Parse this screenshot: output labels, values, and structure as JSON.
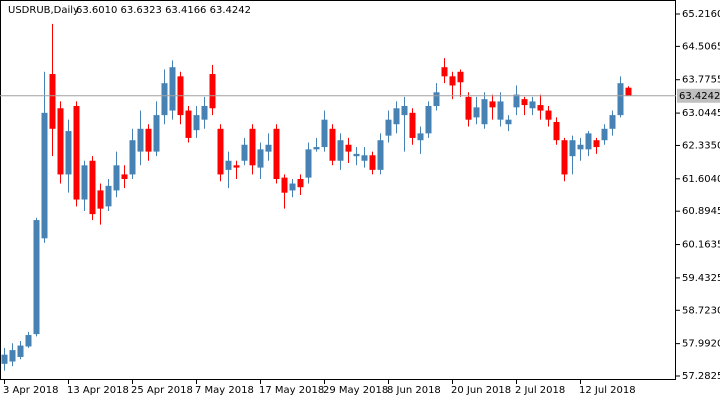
{
  "chart_data": {
    "type": "candlestick",
    "title": "USDRUB,Daily",
    "info": "63.6010 63.6323 63.4166 63.4242",
    "up_color": "#4682b4",
    "down_color": "#ff0000",
    "categories": [
      "3 Apr 2018",
      null,
      null,
      null,
      null,
      null,
      null,
      null,
      "13 Apr 2018",
      null,
      null,
      null,
      null,
      null,
      null,
      null,
      "25 Apr 2018",
      null,
      null,
      null,
      null,
      null,
      null,
      null,
      "7 May 2018",
      null,
      null,
      null,
      null,
      null,
      null,
      null,
      "17 May 2018",
      null,
      null,
      null,
      null,
      null,
      null,
      null,
      "29 May 2018",
      null,
      null,
      null,
      null,
      null,
      null,
      null,
      "8 Jun 2018",
      null,
      null,
      null,
      null,
      null,
      null,
      null,
      "20 Jun 2018",
      null,
      null,
      null,
      null,
      null,
      null,
      null,
      "2 Jul 2018",
      null,
      null,
      null,
      null,
      null,
      null,
      null,
      "12 Jul 2018",
      null,
      null,
      null,
      null,
      null,
      null
    ],
    "open": [
      57.55,
      57.6,
      57.7,
      57.93,
      58.2,
      60.3,
      63.9,
      63.15,
      61.7,
      63.2,
      61.15,
      62.0,
      61.35,
      61.0,
      61.35,
      61.7,
      61.7,
      62.2,
      62.7,
      62.2,
      63.0,
      63.1,
      63.85,
      63.1,
      62.67,
      62.9,
      63.9,
      62.7,
      61.8,
      61.9,
      62.0,
      62.7,
      61.85,
      62.2,
      62.7,
      61.63,
      61.35,
      61.6,
      61.63,
      62.25,
      62.3,
      62.7,
      62.0,
      62.35,
      62.1,
      62.0,
      62.12,
      61.8,
      62.55,
      62.8,
      63.0,
      63.05,
      62.45,
      62.6,
      63.2,
      64.05,
      63.85,
      63.95,
      63.4,
      62.95,
      62.8,
      63.3,
      62.9,
      62.8,
      63.17,
      63.35,
      63.15,
      63.22,
      63.1,
      62.85,
      62.45,
      62.1,
      62.25,
      62.25,
      62.45,
      62.45,
      62.7,
      63.0,
      63.601
    ],
    "high": [
      57.9,
      58.0,
      58.05,
      58.25,
      60.75,
      63.95,
      65.0,
      63.3,
      62.9,
      63.3,
      62.0,
      62.1,
      61.5,
      61.6,
      62.2,
      61.9,
      62.7,
      63.1,
      62.8,
      63.3,
      64.0,
      64.2,
      63.95,
      63.2,
      63.2,
      63.4,
      64.1,
      62.8,
      62.2,
      62.0,
      62.5,
      62.8,
      62.4,
      62.6,
      62.8,
      61.7,
      61.6,
      61.7,
      62.4,
      62.5,
      63.1,
      62.8,
      62.6,
      62.5,
      62.3,
      62.3,
      62.2,
      62.6,
      63.1,
      63.3,
      63.4,
      63.15,
      62.75,
      63.3,
      63.7,
      64.25,
      63.95,
      64.0,
      63.5,
      63.4,
      63.5,
      63.45,
      63.5,
      63.0,
      63.65,
      63.4,
      63.4,
      63.45,
      63.2,
      62.95,
      62.5,
      62.55,
      62.5,
      62.65,
      62.5,
      62.8,
      63.1,
      63.85,
      63.6323
    ],
    "low": [
      57.4,
      57.5,
      57.65,
      57.9,
      58.15,
      60.2,
      62.1,
      61.5,
      61.3,
      61.0,
      60.9,
      60.7,
      60.6,
      60.9,
      61.2,
      61.4,
      61.6,
      61.9,
      62.0,
      62.1,
      62.8,
      62.9,
      62.8,
      62.4,
      62.5,
      62.7,
      63.0,
      61.55,
      61.4,
      61.6,
      61.9,
      61.7,
      61.6,
      62.0,
      61.5,
      60.95,
      61.2,
      61.25,
      61.5,
      62.2,
      62.2,
      61.9,
      61.8,
      61.95,
      61.9,
      61.85,
      61.7,
      61.7,
      62.4,
      62.6,
      62.2,
      62.35,
      62.15,
      62.5,
      63.1,
      63.7,
      63.35,
      63.4,
      62.75,
      62.8,
      62.7,
      62.9,
      62.75,
      62.65,
      63.0,
      63.0,
      63.0,
      62.9,
      62.75,
      62.35,
      61.55,
      61.7,
      62.0,
      62.1,
      62.15,
      62.35,
      62.55,
      62.95,
      63.4166
    ],
    "close": [
      57.75,
      57.85,
      57.95,
      58.18,
      60.7,
      63.05,
      62.7,
      61.7,
      62.65,
      61.15,
      61.9,
      60.83,
      60.95,
      61.45,
      61.9,
      61.6,
      62.45,
      62.7,
      62.2,
      63.0,
      63.7,
      64.05,
      63.0,
      62.5,
      63.0,
      63.2,
      63.15,
      61.7,
      62.0,
      61.85,
      62.35,
      61.9,
      62.25,
      62.35,
      61.6,
      61.3,
      61.5,
      61.42,
      62.25,
      62.3,
      62.9,
      62.0,
      62.45,
      62.2,
      62.15,
      62.12,
      61.8,
      62.45,
      62.9,
      63.15,
      63.2,
      62.5,
      62.6,
      63.2,
      63.5,
      63.85,
      63.65,
      63.72,
      62.9,
      63.17,
      63.35,
      63.17,
      63.3,
      62.9,
      63.45,
      63.22,
      63.3,
      63.1,
      62.9,
      62.45,
      61.7,
      62.45,
      62.35,
      62.6,
      62.3,
      62.7,
      63.0,
      63.7,
      63.4242
    ],
    "last_price": {
      "value": 63.4242,
      "label": "63.4242"
    },
    "ylim": [
      57.195,
      65.457
    ],
    "yticks": [
      {
        "value": 65.216,
        "label": "65.2160"
      },
      {
        "value": 64.5065,
        "label": "64.5065"
      },
      {
        "value": 63.7755,
        "label": "63.7755"
      },
      {
        "value": 63.0445,
        "label": "63.0445"
      },
      {
        "value": 62.335,
        "label": "62.3350"
      },
      {
        "value": 61.604,
        "label": "61.6040"
      },
      {
        "value": 60.8945,
        "label": "60.8945"
      },
      {
        "value": 60.1635,
        "label": "60.1635"
      },
      {
        "value": 59.4325,
        "label": "59.4325"
      },
      {
        "value": 58.723,
        "label": "58.7230"
      },
      {
        "value": 57.992,
        "label": "57.9920"
      },
      {
        "value": 57.2825,
        "label": "57.2825"
      }
    ]
  }
}
